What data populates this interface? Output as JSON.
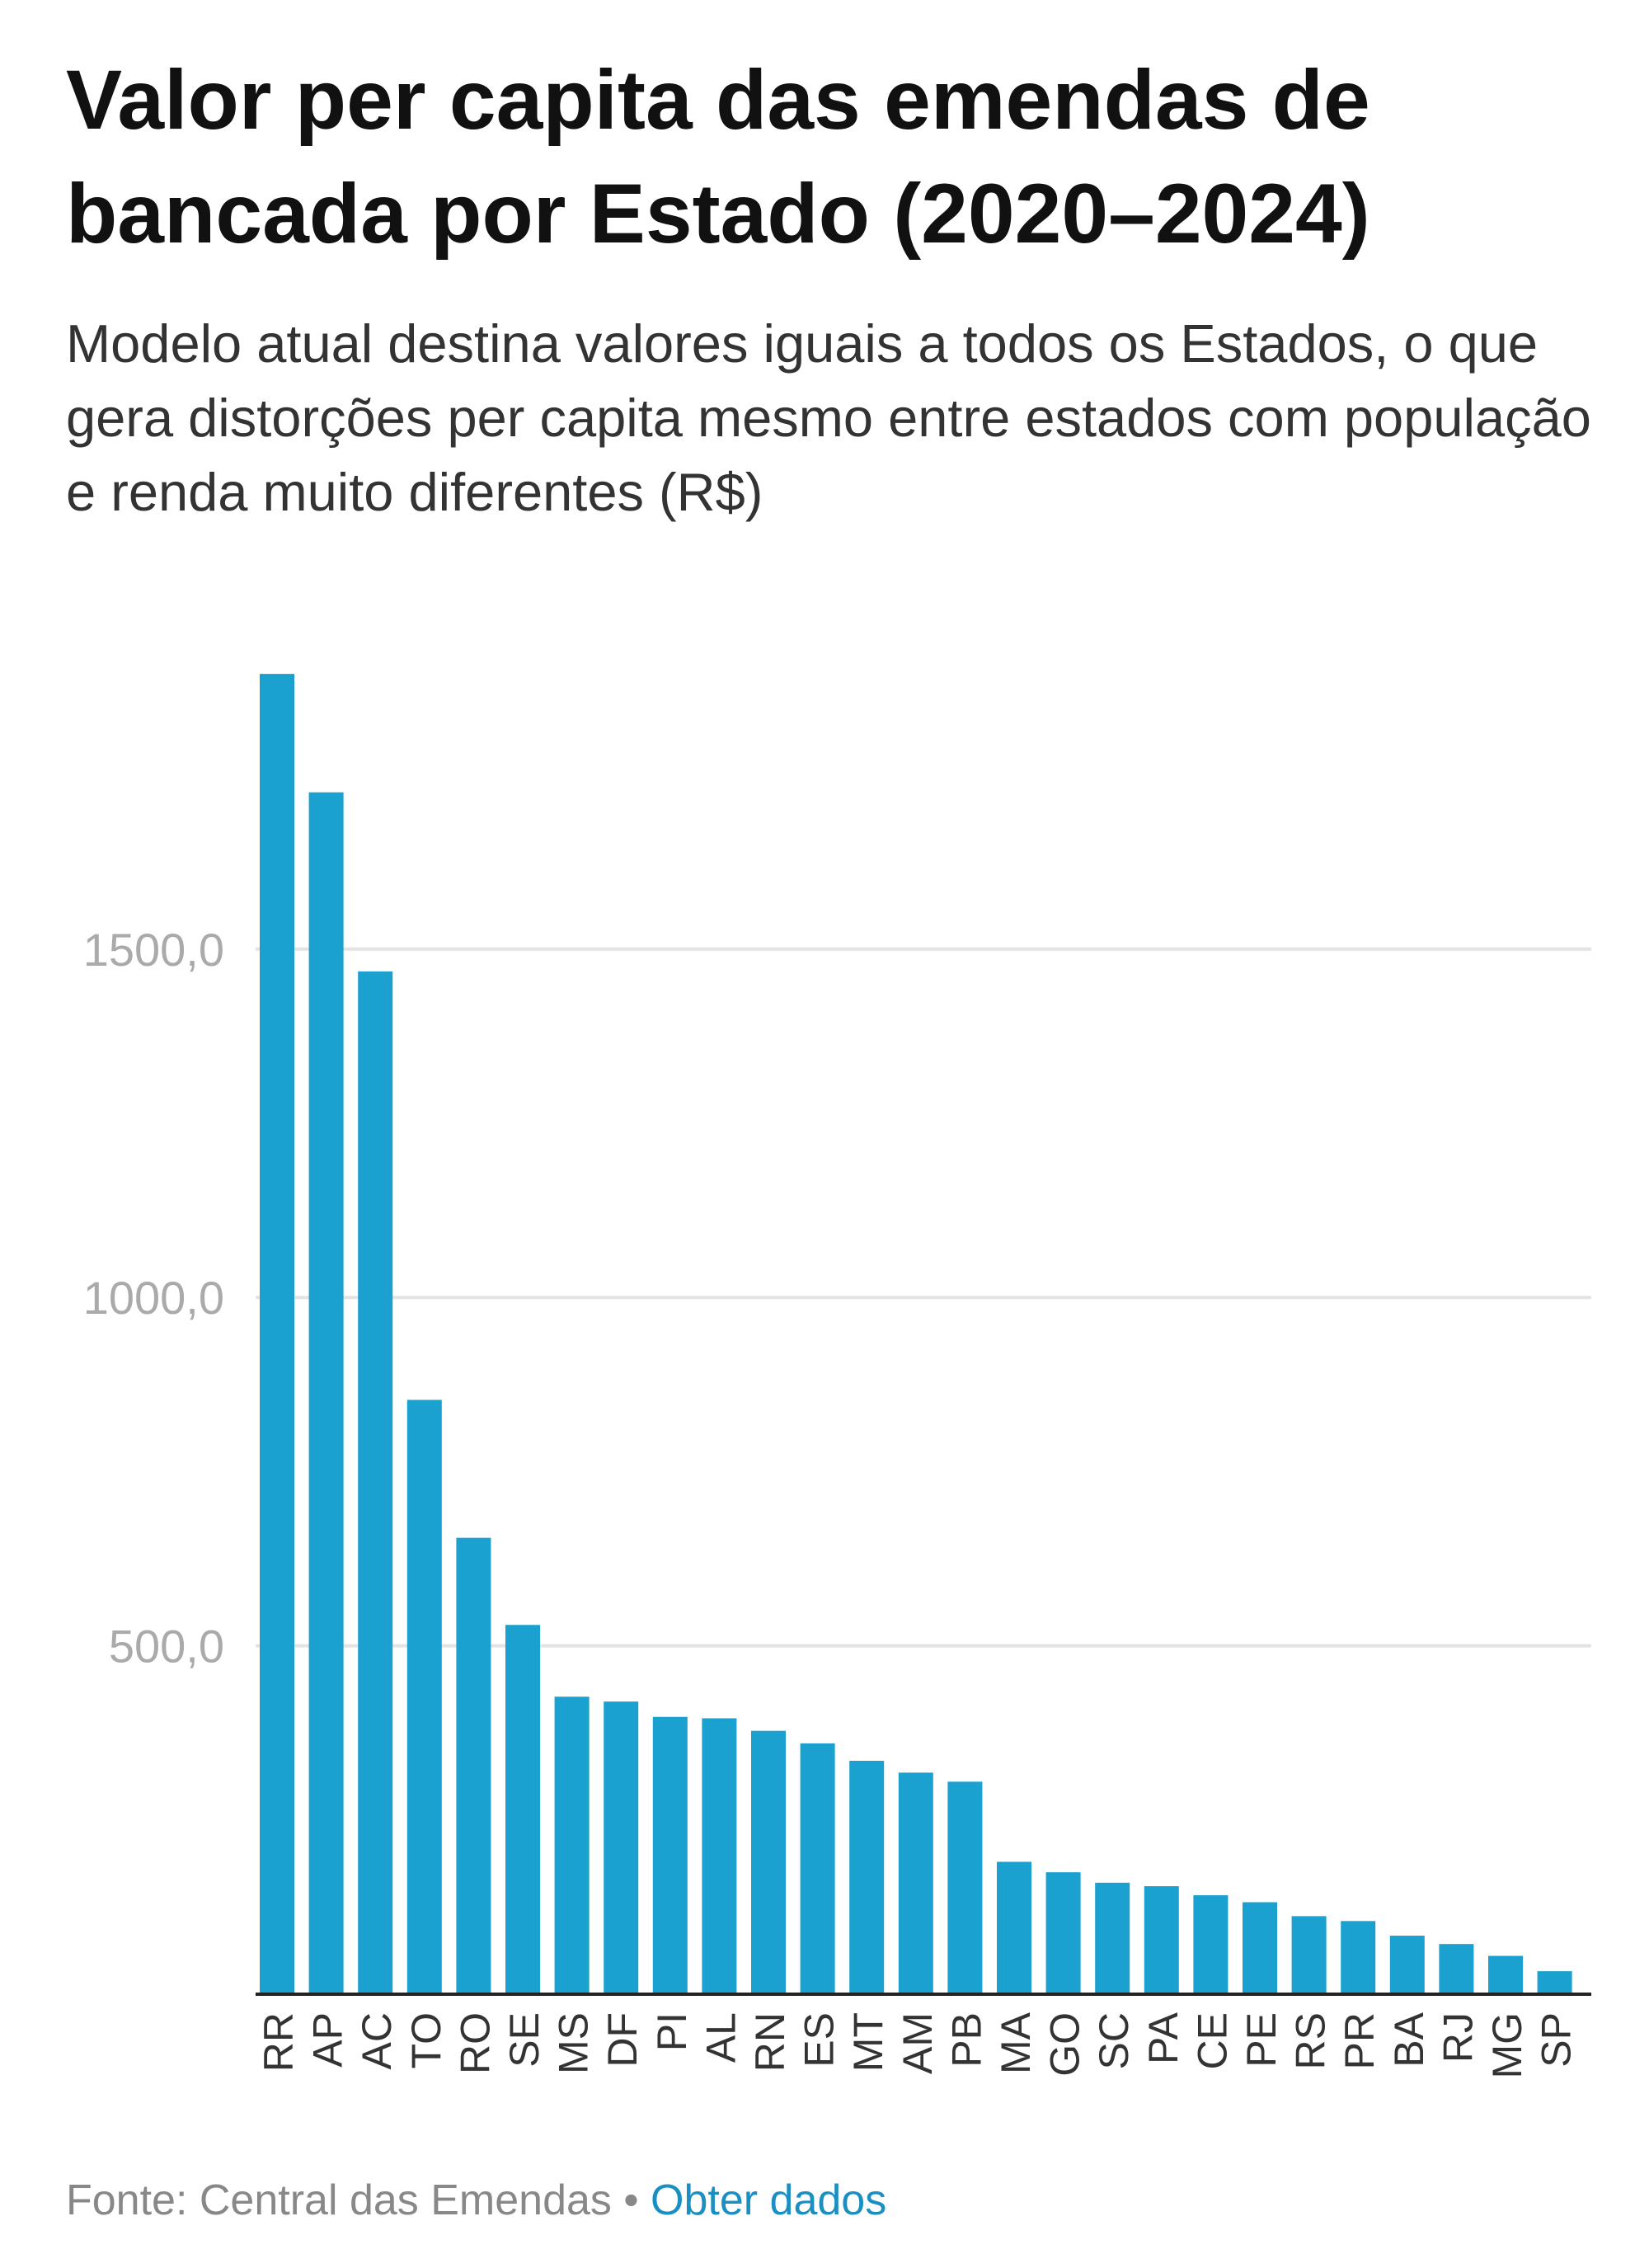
{
  "title": "Valor per capita das emendas de bancada por Estado (2020–2024)",
  "subtitle": "Modelo atual destina valores iguais a todos os Estados, o que gera distorções per capita mesmo entre estados com população e renda muito diferentes (R$)",
  "footer": {
    "source": "Fonte: Central das Emendas",
    "separator": "•",
    "link": "Obter dados"
  },
  "colors": {
    "bar": "#1aa1cf",
    "grid": "#e3e3e3",
    "axis": "#222222",
    "tick_label": "#aaaaaa",
    "category_label": "#333333",
    "link": "#1a8fc2"
  },
  "chart_data": {
    "type": "bar",
    "title": "Valor per capita das emendas de bancada por Estado (2020–2024)",
    "xlabel": "",
    "ylabel": "",
    "ylim": [
      0,
      1900
    ],
    "yticks": [
      500,
      1000,
      1500
    ],
    "ytick_labels": [
      "500,0",
      "1000,0",
      "1500,0"
    ],
    "grid": true,
    "categories": [
      "RR",
      "AP",
      "AC",
      "TO",
      "RO",
      "SE",
      "MS",
      "DF",
      "PI",
      "AL",
      "RN",
      "ES",
      "MT",
      "AM",
      "PB",
      "MA",
      "GO",
      "SC",
      "PA",
      "CE",
      "PE",
      "RS",
      "PR",
      "BA",
      "RJ",
      "MG",
      "SP"
    ],
    "values": [
      1895,
      1725,
      1468,
      853,
      655,
      530,
      427,
      420,
      398,
      396,
      378,
      360,
      335,
      318,
      305,
      190,
      175,
      160,
      155,
      142,
      132,
      112,
      105,
      84,
      72,
      55,
      33
    ]
  }
}
